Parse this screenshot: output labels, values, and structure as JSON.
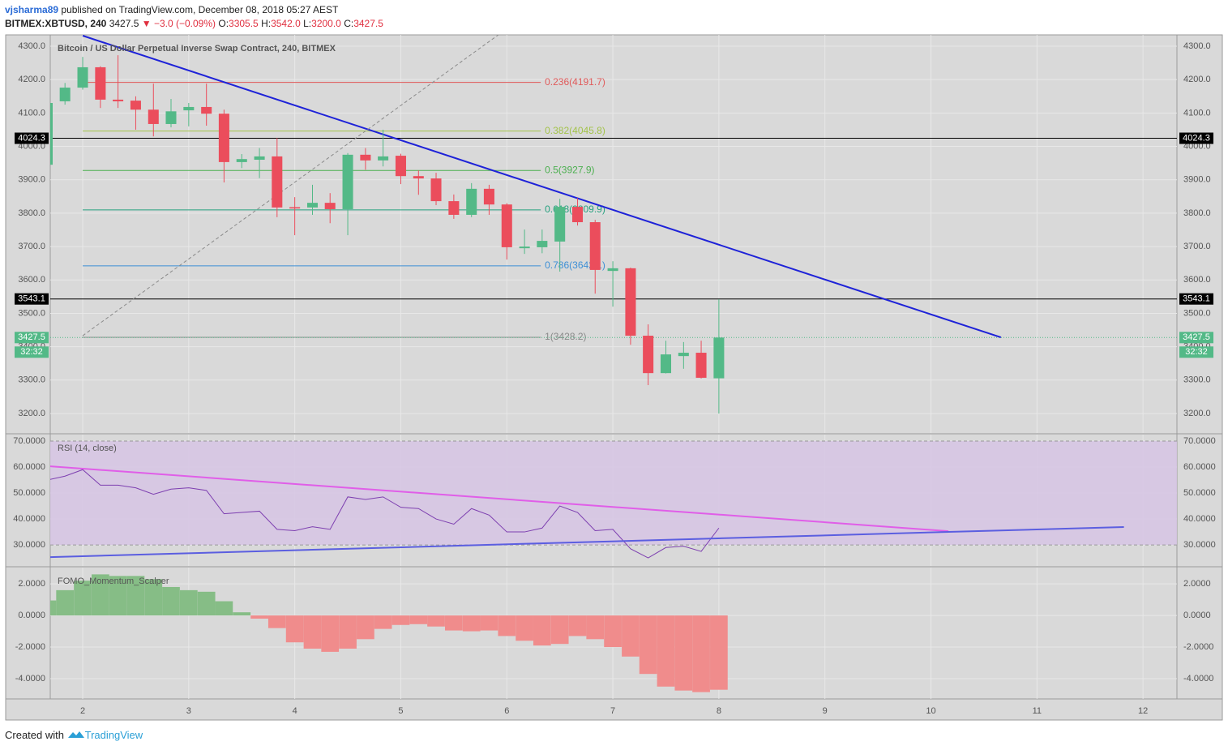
{
  "header": {
    "user": "vjsharma89",
    "published": "published on TradingView.com, December 08, 2018 05:27 AEST",
    "symbol": "BITMEX:XBTUSD, 240",
    "last": "3427.5",
    "change": "▼ −3.0 (−0.09%)",
    "ohlc": [
      {
        "label": "O:",
        "value": "3305.5"
      },
      {
        "label": "H:",
        "value": "3542.0"
      },
      {
        "label": "L:",
        "value": "3200.0"
      },
      {
        "label": "C:",
        "value": "3427.5"
      }
    ]
  },
  "footer": {
    "created": "Created with",
    "brand": "TradingView"
  },
  "chart_data": [
    {
      "type": "candlestick",
      "title": "Bitcoin / US Dollar Perpetual Inverse Swap Contract, 240, BITMEX",
      "x": [
        1.667,
        1.833,
        2,
        2.167,
        2.333,
        2.5,
        2.667,
        2.833,
        3,
        3.167,
        3.333,
        3.5,
        3.667,
        3.833,
        4,
        4.167,
        4.333,
        4.5,
        4.667,
        4.833,
        5,
        5.167,
        5.333,
        5.5,
        5.667,
        5.833,
        6,
        6.167,
        6.333,
        6.5,
        6.667,
        6.833,
        7,
        7.167,
        7.333,
        7.5,
        7.667,
        7.833,
        8
      ],
      "open": [
        3945,
        4135,
        4176,
        4237,
        4140,
        4137,
        4110,
        4067,
        4108,
        4118,
        4098,
        3953,
        3960,
        3970,
        3818,
        3817,
        3831,
        3812,
        3975,
        3958,
        3972,
        3911,
        3904,
        3836,
        3795,
        3873,
        3826,
        3695,
        3698,
        3715,
        3819,
        3773,
        3627,
        3635,
        3433,
        3321,
        3372,
        3382,
        3305.5
      ],
      "high": [
        4135,
        4190,
        4268,
        4240,
        4273,
        4150,
        4188,
        4142,
        4130,
        4188,
        4110,
        3977,
        3995,
        4025,
        3848,
        3885,
        3860,
        3980,
        3995,
        4050,
        3978,
        3928,
        3921,
        3856,
        3890,
        3885,
        3830,
        3751,
        3751,
        3843,
        3845,
        3780,
        3656,
        3637,
        3467,
        3418,
        3414,
        3418,
        3542
      ],
      "low": [
        3945,
        4125,
        4170,
        4115,
        4115,
        4050,
        4030,
        4057,
        4060,
        4062,
        3892,
        3935,
        3905,
        3788,
        3734,
        3795,
        3770,
        3734,
        3930,
        3940,
        3887,
        3855,
        3824,
        3783,
        3788,
        3795,
        3661,
        3678,
        3680,
        3625,
        3763,
        3559,
        3520,
        3406,
        3285,
        3320,
        3334,
        3305,
        3200
      ],
      "close": [
        4130,
        4176,
        4237,
        4140,
        4135,
        4110,
        4067,
        4105,
        4118,
        4098,
        3953,
        3962,
        3970,
        3817,
        3814,
        3831,
        3812,
        3975,
        3958,
        3970,
        3911,
        3904,
        3836,
        3795,
        3873,
        3826,
        3698,
        3700,
        3717,
        3819,
        3773,
        3630,
        3635,
        3433,
        3321,
        3377,
        3382,
        3307,
        3427.5
      ],
      "up_color": "#53b987",
      "down_color": "#eb4d5c",
      "xlim": [
        1.694,
        12.32
      ],
      "xticks": [
        2,
        3,
        4,
        5,
        6,
        7,
        8,
        9,
        10,
        11,
        12
      ],
      "ylim": [
        3141.7,
        4334
      ],
      "yticks": [
        {
          "value": 3200,
          "label": "3200.0"
        },
        {
          "value": 3300,
          "label": "3300.0"
        },
        {
          "value": 3400,
          "label": "3400.0"
        },
        {
          "value": 3500,
          "label": "3500.0"
        },
        {
          "value": 3600,
          "label": "3600.0"
        },
        {
          "value": 3700,
          "label": "3700.0"
        },
        {
          "value": 3800,
          "label": "3800.0"
        },
        {
          "value": 3900,
          "label": "3900.0"
        },
        {
          "value": 4000,
          "label": "4000.0"
        },
        {
          "value": 4100,
          "label": "4100.0"
        },
        {
          "value": 4200,
          "label": "4200.0"
        },
        {
          "value": 4300,
          "label": "4300.0"
        }
      ],
      "grid": true,
      "fib": {
        "x": [
          2,
          6.32
        ],
        "levels": [
          {
            "value": 4191.7,
            "label": "0.236(4191.7)",
            "color": "#e05a5a"
          },
          {
            "value": 4045.8,
            "label": "0.382(4045.8)",
            "color": "#a3c34a"
          },
          {
            "value": 3927.9,
            "label": "0.5(3927.9)",
            "color": "#4caf50"
          },
          {
            "value": 3809.9,
            "label": "0.618(3809.9)",
            "color": "#26a17f"
          },
          {
            "value": 3642.1,
            "label": "0.786(3642.1)",
            "color": "#3d8fd6"
          },
          {
            "value": 3428.2,
            "label": "1(3428.2)",
            "color": "#8a8a8a"
          }
        ]
      },
      "hlines": [
        4024.3,
        3543.1
      ],
      "last": {
        "value": 3427.5,
        "countdown": "32:32",
        "color": "#53b987"
      },
      "trendlines": [
        {
          "x": [
            2,
            10.66
          ],
          "y": [
            4331.6,
            3428
          ],
          "color": "#1e22d8",
          "dashed": false
        },
        {
          "x": [
            2,
            5.92
          ],
          "y": [
            3433,
            4334
          ],
          "color": "#8a8a8a",
          "dashed": true
        }
      ]
    },
    {
      "type": "line",
      "title": "RSI (14, close)",
      "values": [
        55,
        56.5,
        59,
        53,
        53,
        52,
        49.5,
        51.5,
        52,
        51,
        42,
        42.5,
        43,
        36,
        35.5,
        37,
        36,
        48.5,
        47.5,
        48.5,
        44.5,
        44,
        40,
        38,
        44,
        41.5,
        35,
        35,
        36.5,
        45,
        42.5,
        35.5,
        36,
        28.5,
        25,
        29,
        29.5,
        27.5,
        36.5
      ],
      "color": "#7d3fb0",
      "band": [
        30,
        70
      ],
      "band_color": "#d6c4e4",
      "ylim": [
        21.9,
        72.5
      ],
      "yticks": [
        {
          "value": 30,
          "label": "30.0000"
        },
        {
          "value": 40,
          "label": "40.0000"
        },
        {
          "value": 50,
          "label": "50.0000"
        },
        {
          "value": 60,
          "label": "60.0000"
        },
        {
          "value": 70,
          "label": "70.0000"
        }
      ],
      "trendlines": [
        {
          "x": [
            1.69,
            10.165
          ],
          "y": [
            60.3,
            35.3
          ],
          "color": "#e05ee8",
          "dashed": false
        },
        {
          "x": [
            1.69,
            11.82
          ],
          "y": [
            25.3,
            36.9
          ],
          "color": "#5b5ee0",
          "dashed": false
        }
      ]
    },
    {
      "type": "bar",
      "title": "FOMO_Momentum_Scalper",
      "values": [
        0.95,
        1.6,
        2.2,
        2.6,
        2.5,
        2.5,
        2.3,
        1.8,
        1.6,
        1.5,
        0.9,
        0.2,
        -0.2,
        -0.8,
        -1.7,
        -2.1,
        -2.3,
        -2.1,
        -1.5,
        -0.85,
        -0.6,
        -0.55,
        -0.7,
        -0.95,
        -1.0,
        -0.95,
        -1.3,
        -1.6,
        -1.9,
        -1.8,
        -1.3,
        -1.5,
        -2.0,
        -2.6,
        -3.7,
        -4.5,
        -4.75,
        -4.85,
        -4.7
      ],
      "pos_color": "#86bd86",
      "neg_color": "#f08c8c",
      "ylim": [
        -5.28,
        3.03
      ],
      "yticks": [
        {
          "value": -4,
          "label": "-4.0000"
        },
        {
          "value": -2,
          "label": "-2.0000"
        },
        {
          "value": 0,
          "label": "0.0000"
        },
        {
          "value": 2,
          "label": "2.0000"
        }
      ]
    }
  ]
}
